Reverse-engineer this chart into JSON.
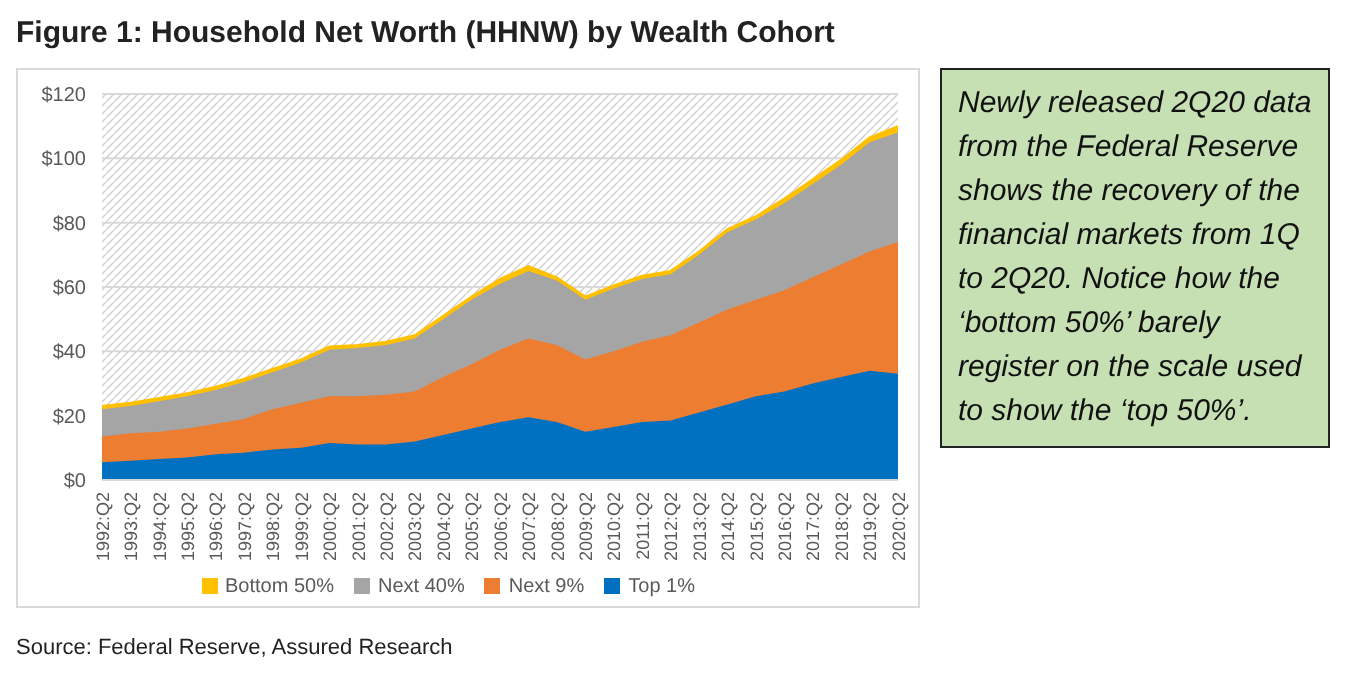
{
  "chart_data": {
    "type": "area",
    "stacked": true,
    "title": "Figure 1:  Household Net Worth (HHNW) by Wealth Cohort",
    "categories": [
      "1992:Q2",
      "1993:Q2",
      "1994:Q2",
      "1995:Q2",
      "1996:Q2",
      "1997:Q2",
      "1998:Q2",
      "1999:Q2",
      "2000:Q2",
      "2001:Q2",
      "2002:Q2",
      "2003:Q2",
      "2004:Q2",
      "2005:Q2",
      "2006:Q2",
      "2007:Q2",
      "2008:Q2",
      "2009:Q2",
      "2010:Q2",
      "2011:Q2",
      "2012:Q2",
      "2013:Q2",
      "2014:Q2",
      "2015:Q2",
      "2016:Q2",
      "2017:Q2",
      "2018:Q2",
      "2019:Q2",
      "2020:Q2"
    ],
    "series": [
      {
        "name": "Top 1%",
        "color": "#0070c0",
        "values": [
          5.5,
          6,
          6.5,
          7,
          8,
          8.5,
          9.5,
          10,
          11.5,
          11,
          11,
          12,
          14,
          16,
          18,
          19.5,
          18,
          15,
          16.5,
          18,
          18.5,
          21,
          23.5,
          26,
          27.5,
          30,
          32,
          34,
          33
        ]
      },
      {
        "name": "Next 9%",
        "color": "#ed7d31",
        "values": [
          8,
          8.5,
          8.5,
          9,
          9.5,
          10.5,
          12.5,
          14,
          14.5,
          15,
          15.5,
          15.5,
          18,
          20,
          22.5,
          24.5,
          24,
          22.5,
          23.5,
          25,
          26.5,
          28,
          29.5,
          30,
          31.5,
          33,
          35,
          37,
          41
        ]
      },
      {
        "name": "Next 40%",
        "color": "#a5a5a5",
        "values": [
          8.5,
          8.5,
          9.5,
          10,
          10.5,
          11.5,
          11.5,
          12.5,
          14.5,
          15,
          15.5,
          16.5,
          18,
          20,
          20.5,
          21,
          20,
          18.5,
          19.5,
          19.5,
          19,
          21,
          24,
          25,
          27,
          29,
          31,
          34,
          34
        ]
      },
      {
        "name": "Bottom 50%",
        "color": "#ffc000",
        "values": [
          1,
          1,
          1,
          1,
          1,
          1,
          1,
          1,
          1,
          1,
          1,
          1,
          1,
          1,
          1.5,
          1.5,
          1,
          1,
          1,
          1,
          1,
          1,
          1,
          1,
          1.5,
          1.5,
          1.5,
          1.5,
          2
        ]
      }
    ],
    "ylim": [
      0,
      120
    ],
    "yticks": [
      {
        "value": 0,
        "label": "$0"
      },
      {
        "value": 20,
        "label": "$20"
      },
      {
        "value": 40,
        "label": "$40"
      },
      {
        "value": 60,
        "label": "$60"
      },
      {
        "value": 80,
        "label": "$80"
      },
      {
        "value": 100,
        "label": "$100"
      },
      {
        "value": 120,
        "label": "$120"
      }
    ],
    "grid": "y",
    "legend": "bottom",
    "annotations": [
      "Newly released 2Q20 data from the Federal Reserve shows the recovery of the financial markets from 1Q to 2Q20. Notice how the ‘bottom 50%’ barely register on the scale used to show the ‘top 50%’.",
      "Source: Federal Reserve, Assured Research"
    ]
  }
}
